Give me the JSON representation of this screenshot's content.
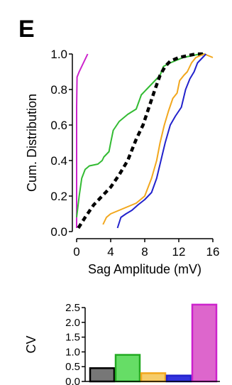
{
  "panel_label": "E",
  "chart_data": [
    {
      "type": "line",
      "xlabel": "Sag Amplitude (mV)",
      "ylabel": "Cum. Distribution",
      "xlim": [
        0,
        17
      ],
      "ylim": [
        0,
        1.0
      ],
      "xticks": [
        0,
        4,
        8,
        12,
        16
      ],
      "yticks": [
        "0.0",
        "0.2",
        "0.4",
        "0.6",
        "0.8",
        "1.0"
      ],
      "grid": false,
      "series": [
        {
          "color": "#cc22cc",
          "style": "solid",
          "x": [
            0.0,
            0.0,
            0.0,
            0.05,
            0.3,
            1.3
          ],
          "y": [
            0.02,
            0.4,
            0.7,
            0.87,
            0.9,
            1.0
          ]
        },
        {
          "color": "#33bb33",
          "style": "solid",
          "x": [
            0.0,
            0.3,
            0.6,
            1.0,
            1.5,
            2.5,
            3.0,
            3.2,
            3.8,
            4.0,
            4.3,
            5.0,
            5.5,
            6.0,
            7.0,
            7.6,
            8.2,
            9.0,
            9.8,
            10.2,
            11.0,
            12.5,
            13.5,
            14.5,
            15.0
          ],
          "y": [
            0.08,
            0.2,
            0.3,
            0.35,
            0.37,
            0.38,
            0.4,
            0.42,
            0.45,
            0.5,
            0.57,
            0.62,
            0.64,
            0.66,
            0.69,
            0.77,
            0.8,
            0.84,
            0.88,
            0.93,
            0.95,
            0.98,
            0.99,
            1.0,
            1.0
          ]
        },
        {
          "color": "#000000",
          "style": "dashed",
          "x": [
            0.2,
            1.0,
            2.0,
            3.0,
            4.0,
            5.0,
            6.0,
            7.0,
            7.8,
            8.5,
            9.2,
            9.8,
            10.4,
            11.0,
            12.0,
            13.0,
            14.0,
            15.0
          ],
          "y": [
            0.02,
            0.08,
            0.15,
            0.2,
            0.25,
            0.32,
            0.4,
            0.52,
            0.6,
            0.7,
            0.8,
            0.88,
            0.93,
            0.96,
            0.98,
            0.99,
            1.0,
            1.0
          ]
        },
        {
          "color": "#f2a71d",
          "style": "solid",
          "x": [
            3.1,
            3.5,
            4.0,
            5.0,
            6.0,
            7.0,
            8.0,
            8.8,
            9.4,
            9.8,
            10.3,
            10.8,
            11.3,
            11.8,
            12.1,
            12.6,
            13.0,
            13.5,
            14.0,
            15.0,
            16.0
          ],
          "y": [
            0.04,
            0.08,
            0.1,
            0.12,
            0.14,
            0.16,
            0.2,
            0.3,
            0.4,
            0.5,
            0.6,
            0.68,
            0.75,
            0.78,
            0.85,
            0.88,
            0.9,
            0.95,
            0.98,
            1.0,
            0.98
          ]
        },
        {
          "color": "#2222cc",
          "style": "solid",
          "x": [
            4.8,
            5.2,
            5.8,
            6.5,
            7.2,
            8.0,
            8.8,
            9.4,
            9.9,
            10.4,
            11.0,
            11.6,
            12.3,
            12.8,
            13.3,
            13.8,
            14.2,
            14.8,
            15.2
          ],
          "y": [
            0.02,
            0.08,
            0.1,
            0.12,
            0.15,
            0.18,
            0.22,
            0.3,
            0.4,
            0.5,
            0.6,
            0.65,
            0.7,
            0.8,
            0.86,
            0.9,
            0.95,
            0.98,
            1.0
          ]
        }
      ]
    },
    {
      "type": "bar",
      "ylabel": "CV",
      "ylim": [
        0,
        2.5
      ],
      "yticks": [
        "0.0",
        "0.5",
        "1.0",
        "1.5",
        "2.0",
        "2.5"
      ],
      "values": [
        0.45,
        0.9,
        0.28,
        0.2,
        2.6
      ],
      "colors": [
        "#777777",
        "#66dd66",
        "#f5cc6a",
        "#3333dd",
        "#dd66cc"
      ],
      "border_colors": [
        "#000000",
        "#22aa22",
        "#f2a71d",
        "#2222cc",
        "#cc22cc"
      ]
    }
  ]
}
